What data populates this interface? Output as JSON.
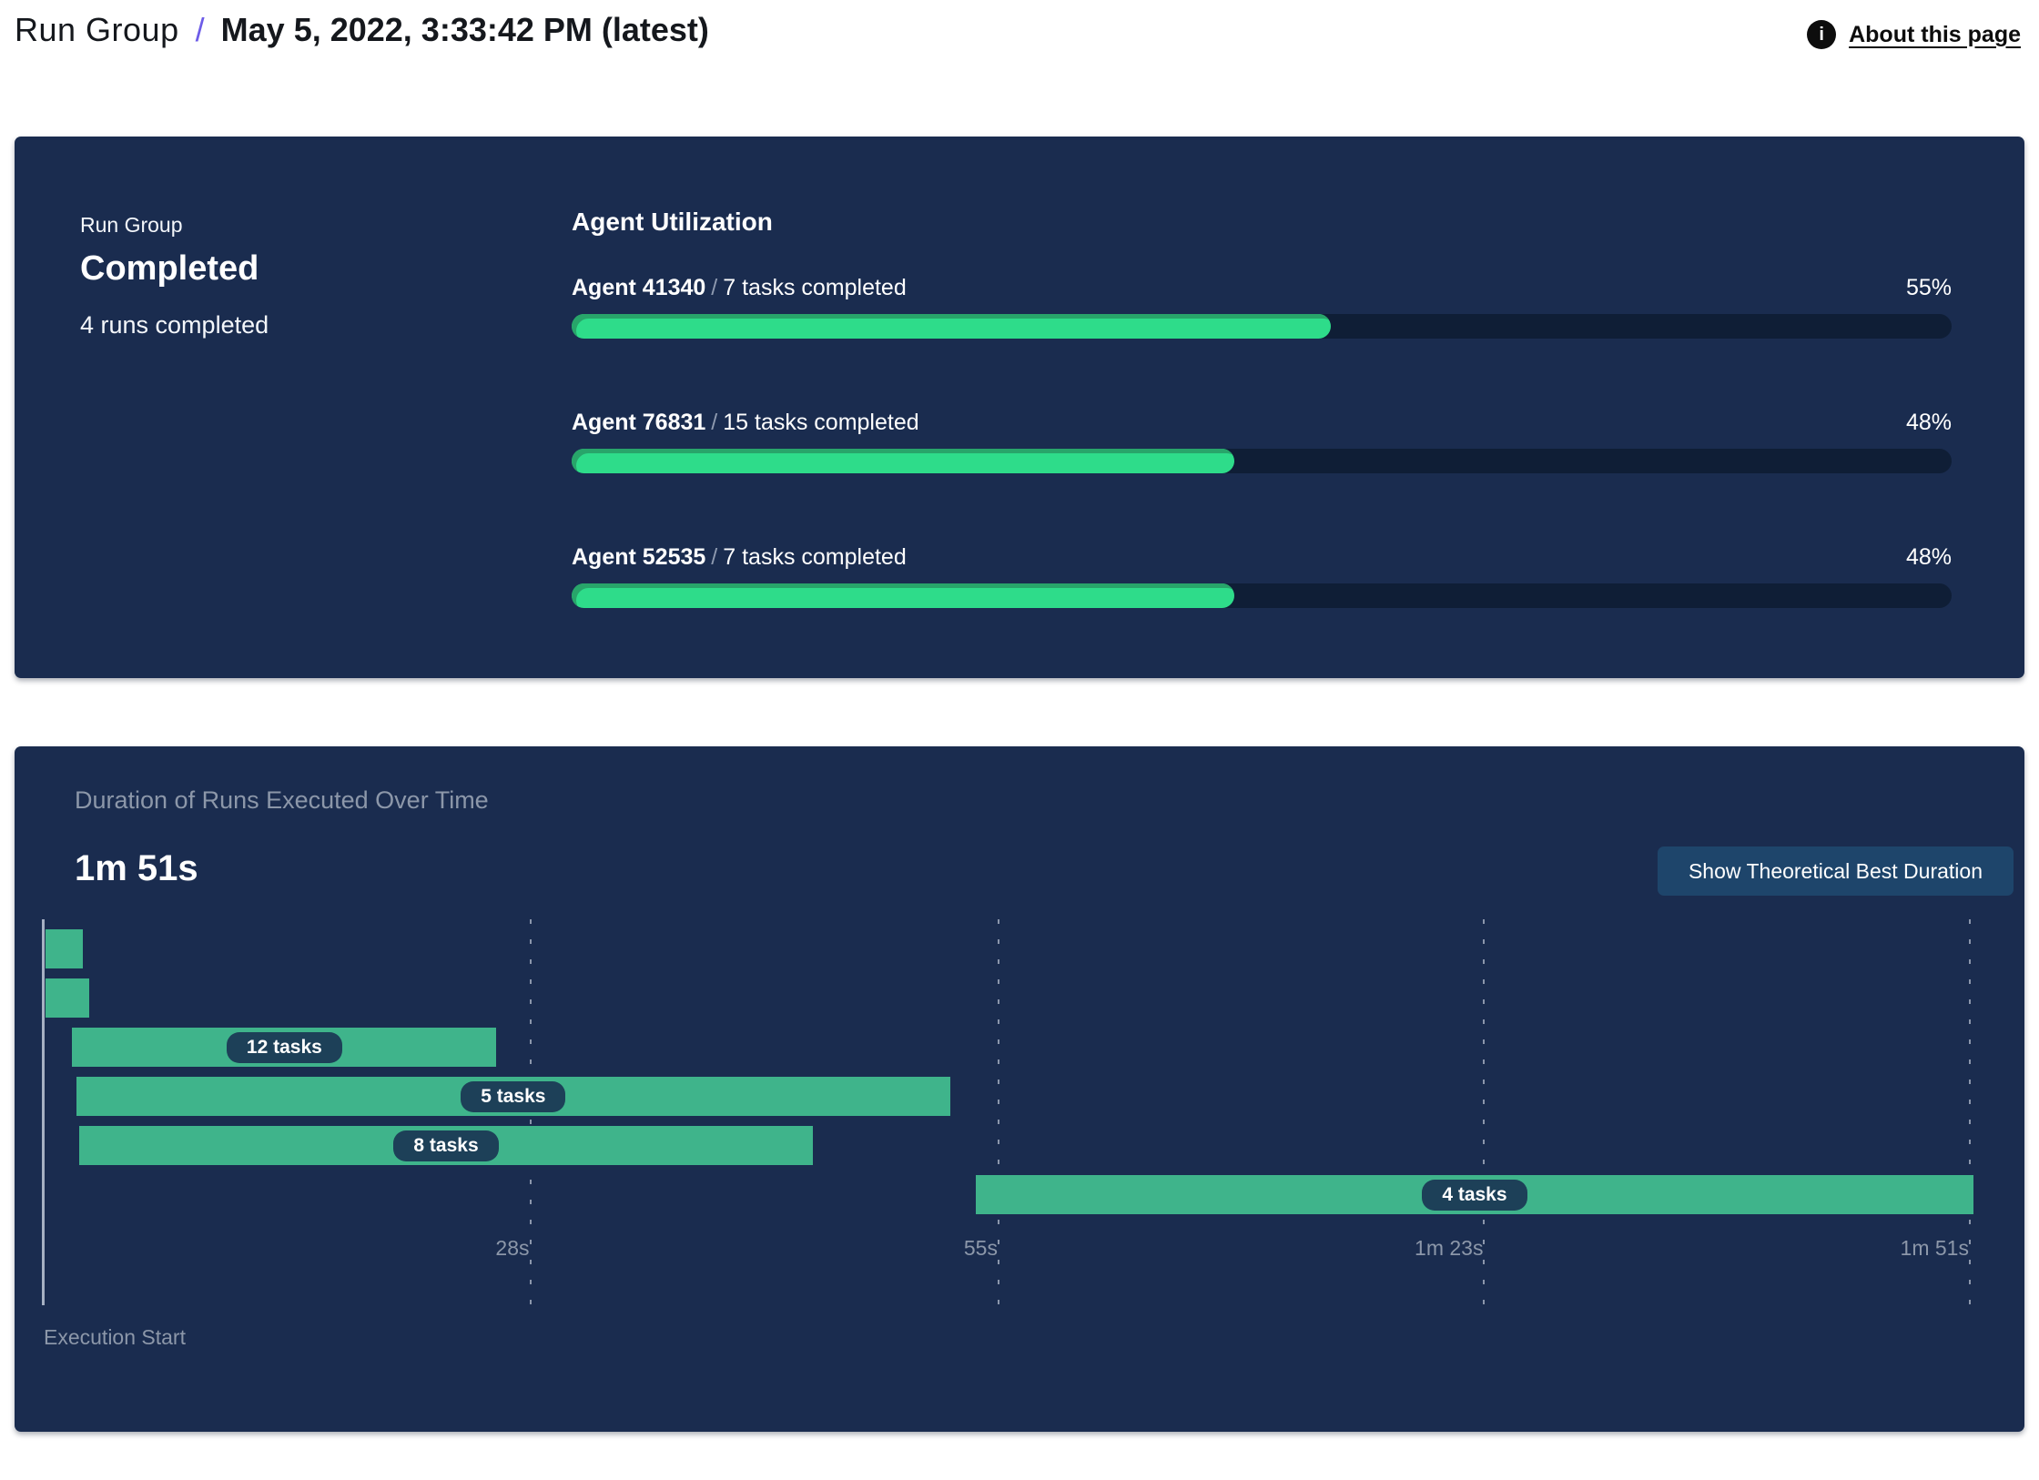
{
  "header": {
    "breadcrumb_root": "Run Group",
    "separator": "/",
    "title": "May 5, 2022, 3:33:42 PM (latest)",
    "info_icon_glyph": "i",
    "about_link": "About this page"
  },
  "colors": {
    "panel_bg": "#1a2c4f",
    "progress_fill": "#2edc8a",
    "progress_fill_shade": "#28a56a",
    "progress_track": "#0f1e36",
    "gantt_bar": "#3fb48b",
    "pill_bg": "#1d4058",
    "button_bg": "#1e456b",
    "muted_text": "#8c97a9",
    "accent_slash": "#6d5ce8"
  },
  "run_group_panel": {
    "label": "Run Group",
    "status": "Completed",
    "runs_summary": "4 runs completed",
    "section_title": "Agent Utilization",
    "agents": [
      {
        "name": "Agent 41340",
        "separator": "/",
        "tasks": "7 tasks completed",
        "utilization_pct": 55,
        "pct_label": "55%"
      },
      {
        "name": "Agent 76831",
        "separator": "/",
        "tasks": "15 tasks completed",
        "utilization_pct": 48,
        "pct_label": "48%"
      },
      {
        "name": "Agent 52535",
        "separator": "/",
        "tasks": "7 tasks completed",
        "utilization_pct": 48,
        "pct_label": "48%"
      }
    ]
  },
  "duration_panel": {
    "subtitle": "Duration of Runs Executed Over Time",
    "total_duration": "1m 51s",
    "button_label": "Show Theoretical Best Duration",
    "execution_start_label": "Execution Start"
  },
  "chart_data": {
    "type": "gantt",
    "title": "Duration of Runs Executed Over Time",
    "total_duration_label": "1m 51s",
    "x_unit": "seconds",
    "x_range": [
      0,
      113
    ],
    "grid": "dashed-vertical",
    "ticks": [
      {
        "s": 28,
        "label": "28s"
      },
      {
        "s": 55,
        "label": "55s"
      },
      {
        "s": 83,
        "label": "1m 23s"
      },
      {
        "s": 111,
        "label": "1m 51s"
      }
    ],
    "runs": [
      {
        "start_s": 0.1,
        "end_s": 2.25,
        "label": ""
      },
      {
        "start_s": 0.1,
        "end_s": 2.6,
        "label": ""
      },
      {
        "start_s": 1.65,
        "end_s": 26.1,
        "label": "12 tasks"
      },
      {
        "start_s": 1.9,
        "end_s": 52.25,
        "label": "5 tasks"
      },
      {
        "start_s": 2.05,
        "end_s": 44.35,
        "label": "8 tasks"
      },
      {
        "start_s": 53.75,
        "end_s": 111.25,
        "label": "4 tasks"
      }
    ]
  }
}
